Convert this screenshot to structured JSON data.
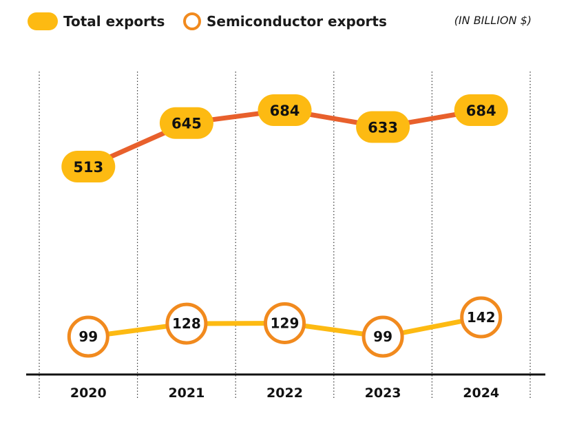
{
  "colors": {
    "total_line": "#E8602C",
    "total_fill": "#FDBA12",
    "semi_line": "#FDBA12",
    "semi_ring": "#F18A1E",
    "axis": "#111111",
    "grid": "#333333"
  },
  "legend": {
    "total_label": "Total exports",
    "semi_label": "Semiconductor exports",
    "unit_note": "(IN BILLION $)"
  },
  "chart_data": {
    "type": "line",
    "categories": [
      "2020",
      "2021",
      "2022",
      "2023",
      "2024"
    ],
    "series": [
      {
        "name": "Total exports",
        "values": [
          513,
          645,
          684,
          633,
          684
        ]
      },
      {
        "name": "Semiconductor exports",
        "values": [
          99,
          128,
          129,
          99,
          142
        ]
      }
    ],
    "grid": "vertical dotted separators",
    "legend_position": "top-left"
  }
}
